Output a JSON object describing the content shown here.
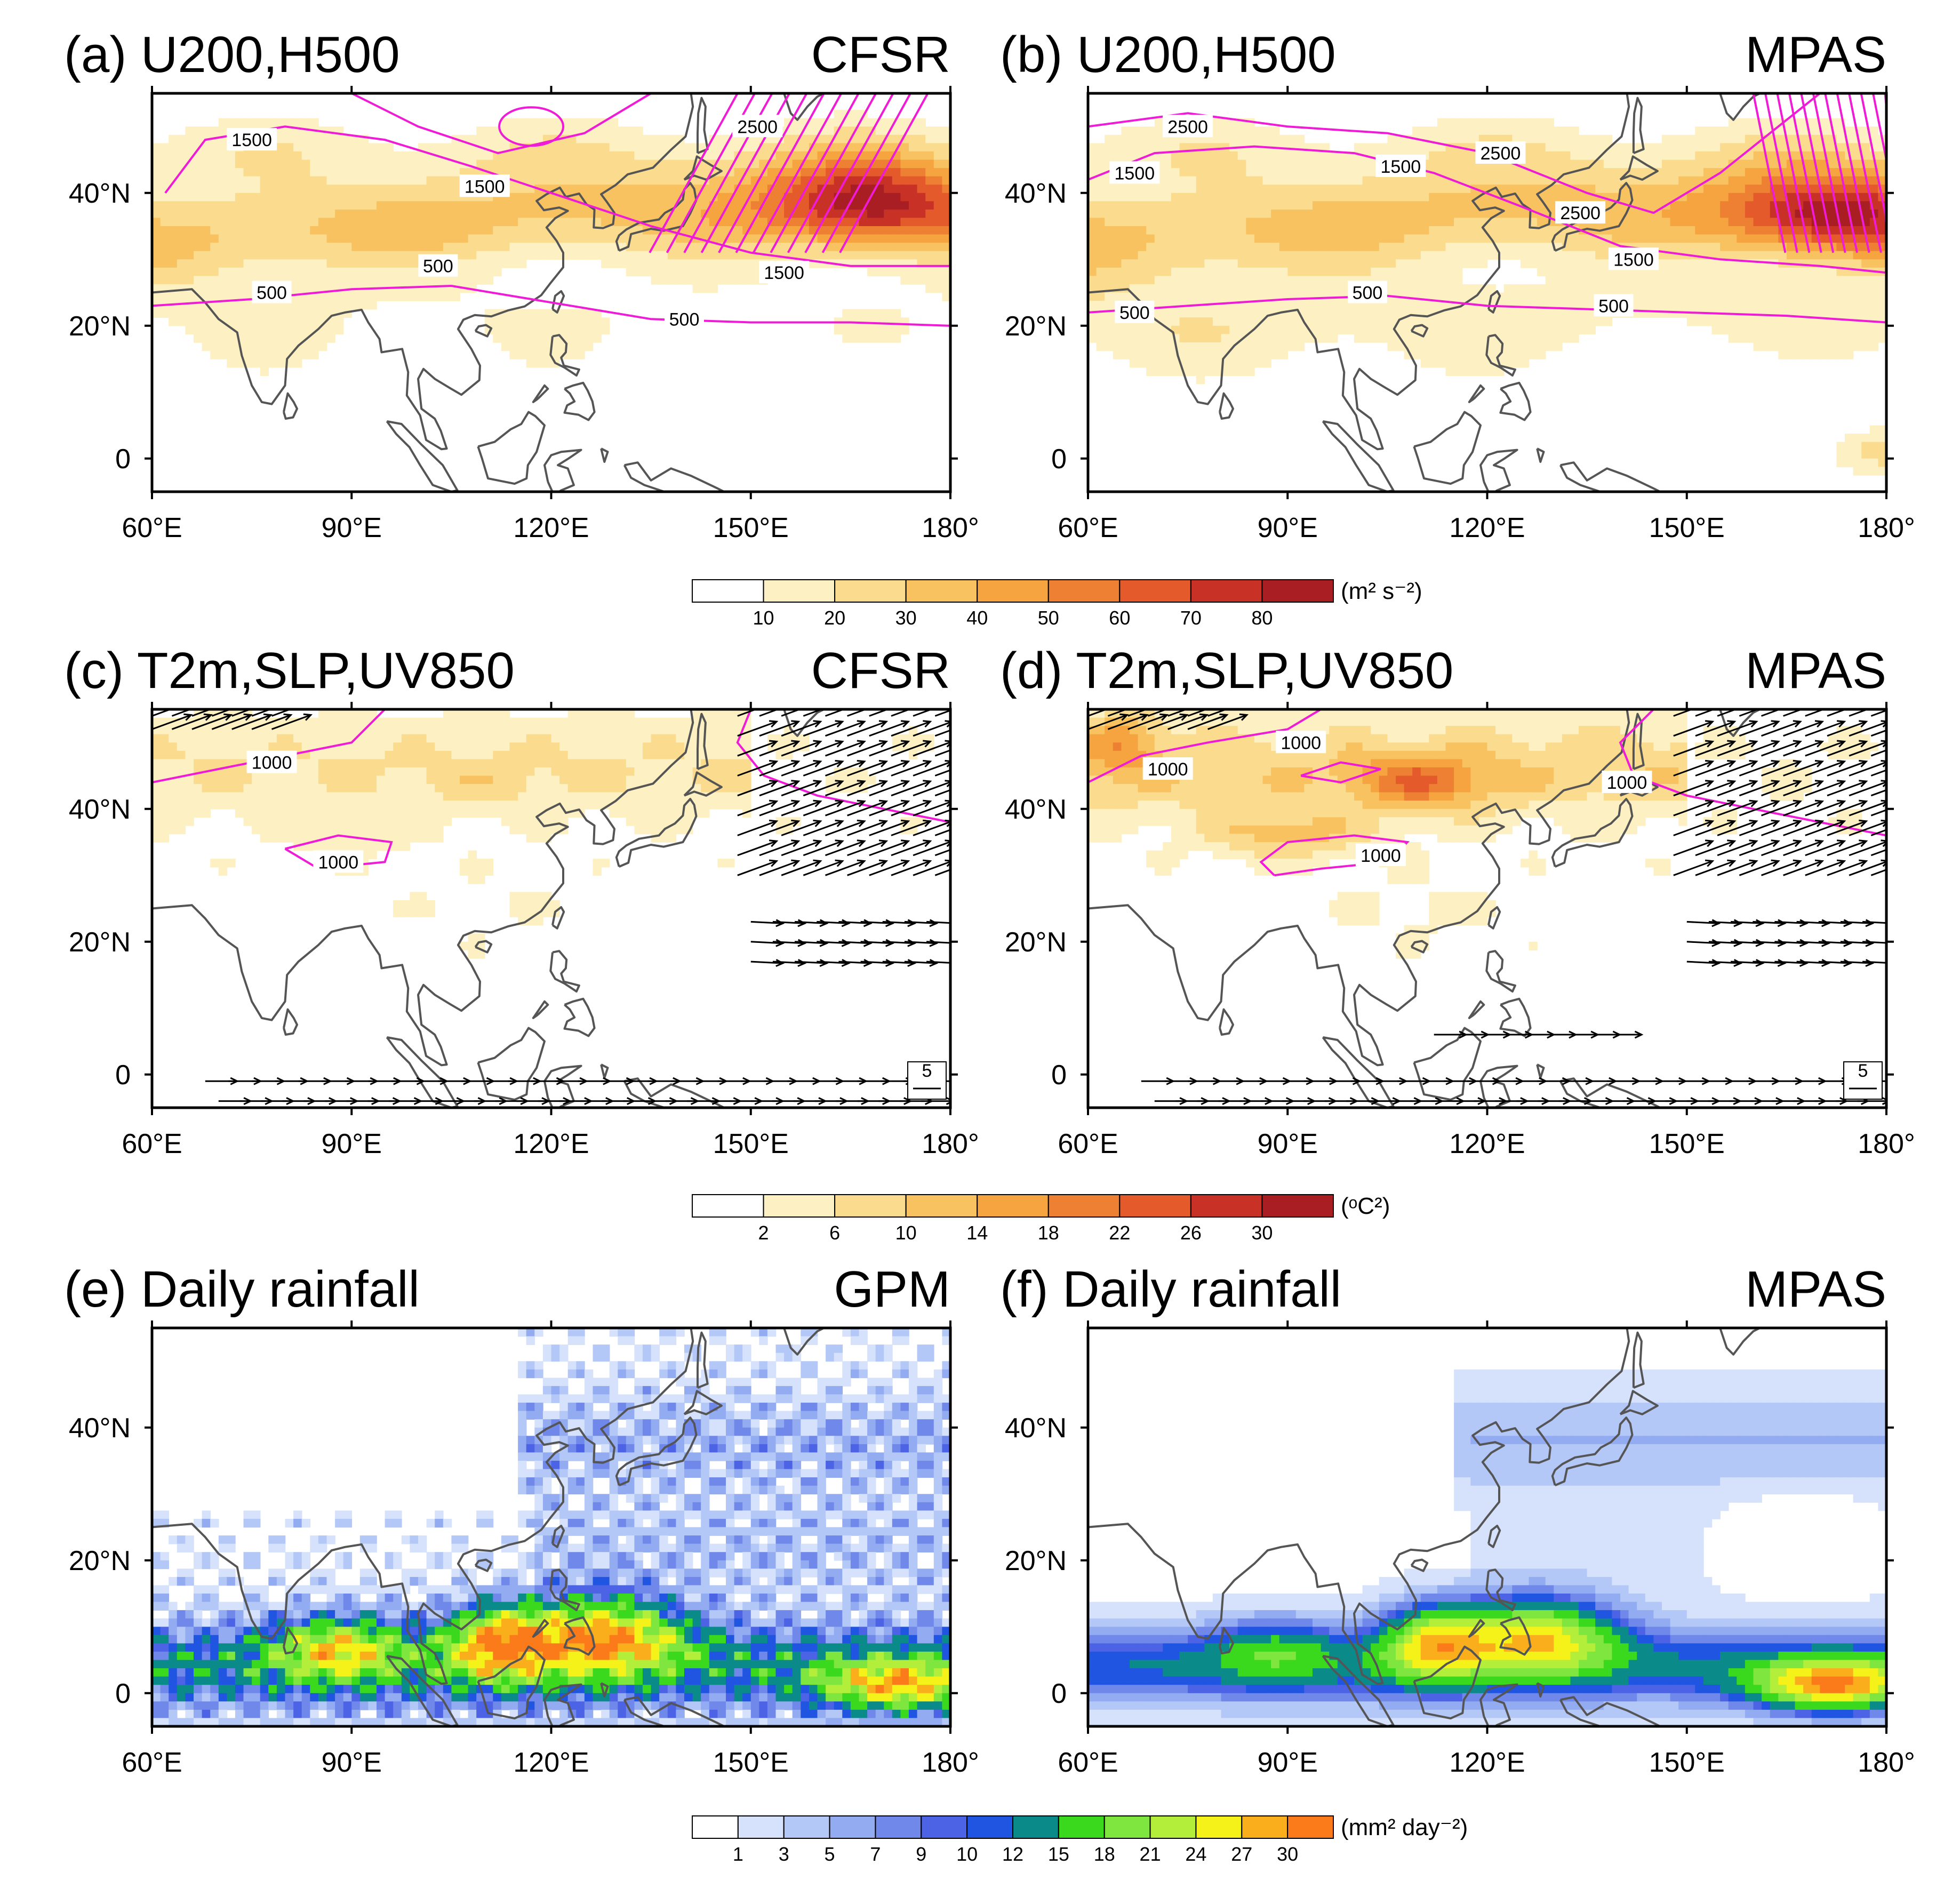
{
  "figure": {
    "units": [
      "(m² s⁻²)",
      "(ᵒC²)",
      "(mm² day⁻²)"
    ]
  },
  "chart_data": [
    {
      "type": "heatmap",
      "panel_label": "(a) U200,H500",
      "source": "CFSR",
      "xlabel": "",
      "ylabel": "",
      "xlim": [
        60,
        180
      ],
      "ylim": [
        -5,
        55
      ],
      "x_ticks": [
        "60°E",
        "90°E",
        "120°E",
        "150°E",
        "180°"
      ],
      "y_ticks": [
        "0",
        "20°N",
        "40°N"
      ],
      "contour_labels": [
        {
          "text": "1500",
          "lon": 75,
          "lat": 48
        },
        {
          "text": "1500",
          "lon": 110,
          "lat": 41
        },
        {
          "text": "2500",
          "lon": 151,
          "lat": 50
        },
        {
          "text": "500",
          "lon": 103,
          "lat": 29
        },
        {
          "text": "500",
          "lon": 78,
          "lat": 25
        },
        {
          "text": "1500",
          "lon": 155,
          "lat": 28
        },
        {
          "text": "500",
          "lon": 140,
          "lat": 21
        }
      ],
      "colorbar": {
        "ticks": [
          "10",
          "20",
          "30",
          "40",
          "50",
          "60",
          "70",
          "80"
        ]
      }
    },
    {
      "type": "heatmap",
      "panel_label": "(b) U200,H500",
      "source": "MPAS",
      "xlim": [
        60,
        180
      ],
      "ylim": [
        -5,
        55
      ],
      "x_ticks": [
        "60°E",
        "90°E",
        "120°E",
        "150°E",
        "180°"
      ],
      "y_ticks": [
        "0",
        "20°N",
        "40°N"
      ],
      "contour_labels": [
        {
          "text": "2500",
          "lon": 75,
          "lat": 50
        },
        {
          "text": "2500",
          "lon": 122,
          "lat": 46
        },
        {
          "text": "1500",
          "lon": 67,
          "lat": 43
        },
        {
          "text": "1500",
          "lon": 107,
          "lat": 44
        },
        {
          "text": "2500",
          "lon": 134,
          "lat": 37
        },
        {
          "text": "1500",
          "lon": 142,
          "lat": 30
        },
        {
          "text": "500",
          "lon": 102,
          "lat": 25
        },
        {
          "text": "500",
          "lon": 67,
          "lat": 22
        },
        {
          "text": "500",
          "lon": 139,
          "lat": 23
        }
      ]
    },
    {
      "type": "heatmap",
      "panel_label": "(c) T2m,SLP,UV850",
      "source": "CFSR",
      "xlim": [
        60,
        180
      ],
      "ylim": [
        -5,
        55
      ],
      "x_ticks": [
        "60°E",
        "90°E",
        "120°E",
        "150°E",
        "180°"
      ],
      "y_ticks": [
        "0",
        "20°N",
        "40°N"
      ],
      "contour_labels": [
        {
          "text": "1000",
          "lon": 78,
          "lat": 47
        },
        {
          "text": "1000",
          "lon": 88,
          "lat": 32
        }
      ],
      "reference_vector": "5",
      "colorbar": {
        "ticks": [
          "2",
          "6",
          "10",
          "14",
          "18",
          "22",
          "26",
          "30"
        ]
      }
    },
    {
      "type": "heatmap",
      "panel_label": "(d) T2m,SLP,UV850",
      "source": "MPAS",
      "xlim": [
        60,
        180
      ],
      "ylim": [
        -5,
        55
      ],
      "x_ticks": [
        "60°E",
        "90°E",
        "120°E",
        "150°E",
        "180°"
      ],
      "y_ticks": [
        "0",
        "20°N",
        "40°N"
      ],
      "contour_labels": [
        {
          "text": "1000",
          "lon": 72,
          "lat": 46
        },
        {
          "text": "1000",
          "lon": 92,
          "lat": 50
        },
        {
          "text": "1000",
          "lon": 104,
          "lat": 33
        },
        {
          "text": "1000",
          "lon": 141,
          "lat": 44
        }
      ],
      "reference_vector": "5"
    },
    {
      "type": "heatmap",
      "panel_label": "(e) Daily rainfall",
      "source": "GPM",
      "xlim": [
        60,
        180
      ],
      "ylim": [
        -5,
        55
      ],
      "x_ticks": [
        "60°E",
        "90°E",
        "120°E",
        "150°E",
        "180°"
      ],
      "y_ticks": [
        "0",
        "20°N",
        "40°N"
      ],
      "colorbar": {
        "ticks": [
          "1",
          "3",
          "5",
          "7",
          "9",
          "10",
          "12",
          "15",
          "18",
          "21",
          "24",
          "27",
          "30"
        ]
      }
    },
    {
      "type": "heatmap",
      "panel_label": "(f) Daily rainfall",
      "source": "MPAS",
      "xlim": [
        60,
        180
      ],
      "ylim": [
        -5,
        55
      ],
      "x_ticks": [
        "60°E",
        "90°E",
        "120°E",
        "150°E",
        "180°"
      ],
      "y_ticks": [
        "0",
        "20°N",
        "40°N"
      ]
    }
  ],
  "colors": {
    "warm_scale": [
      "#ffffff",
      "#fdf0c2",
      "#fbdc8f",
      "#f8c261",
      "#f5a43f",
      "#ee8033",
      "#e45a2b",
      "#c83226",
      "#a81e22",
      "#7e1416"
    ],
    "rain_scale": [
      "#ffffff",
      "#d6e2fb",
      "#b4c8f7",
      "#93abf1",
      "#7088ea",
      "#4c63e6",
      "#1f55e0",
      "#0b8a8a",
      "#3ad91e",
      "#7ee63e",
      "#b2ee3a",
      "#f4f218",
      "#fbae1b",
      "#fb7b1b",
      "#f52a1a"
    ],
    "contour": "#ef1bd7",
    "coast": "#555555"
  }
}
